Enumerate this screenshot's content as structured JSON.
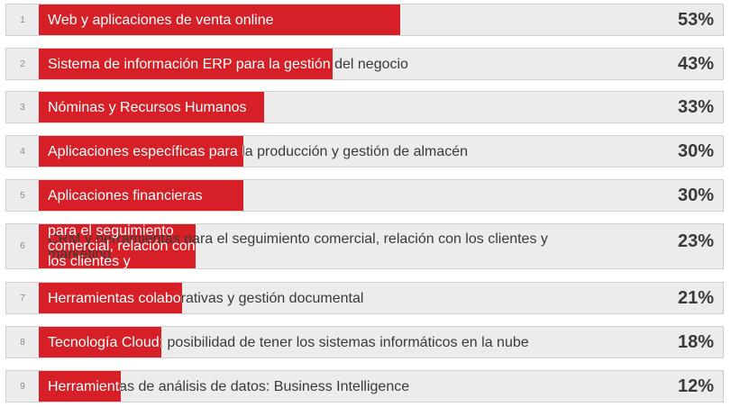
{
  "chart_data": {
    "type": "bar",
    "orientation": "horizontal",
    "bar_color": "#d61f26",
    "track_color": "#ececec",
    "xlim": [
      0,
      100
    ],
    "rows": [
      {
        "rank": "1",
        "label": "Web y aplicaciones de venta online",
        "value": 53,
        "value_label": "53%"
      },
      {
        "rank": "2",
        "label": "Sistema de información ERP para la gestión del negocio",
        "value": 43,
        "value_label": "43%"
      },
      {
        "rank": "3",
        "label": "Nóminas y Recursos Humanos",
        "value": 33,
        "value_label": "33%"
      },
      {
        "rank": "4",
        "label": "Aplicaciones específicas para la producción y gestión de almacén",
        "value": 30,
        "value_label": "30%"
      },
      {
        "rank": "5",
        "label": "Aplicaciones financieras",
        "value": 30,
        "value_label": "30%"
      },
      {
        "rank": "6",
        "label": "CRM y herramientas para el seguimiento comercial, relación con los clientes y marketing",
        "value": 23,
        "value_label": "23%"
      },
      {
        "rank": "7",
        "label": "Herramientas colaborativas y gestión documental",
        "value": 21,
        "value_label": "21%"
      },
      {
        "rank": "8",
        "label": "Tecnología Cloud: posibilidad de tener los sistemas informáticos en la nube",
        "value": 18,
        "value_label": "18%"
      },
      {
        "rank": "9",
        "label": "Herramientas de análisis de datos: Business Intelligence",
        "value": 12,
        "value_label": "12%"
      }
    ]
  }
}
